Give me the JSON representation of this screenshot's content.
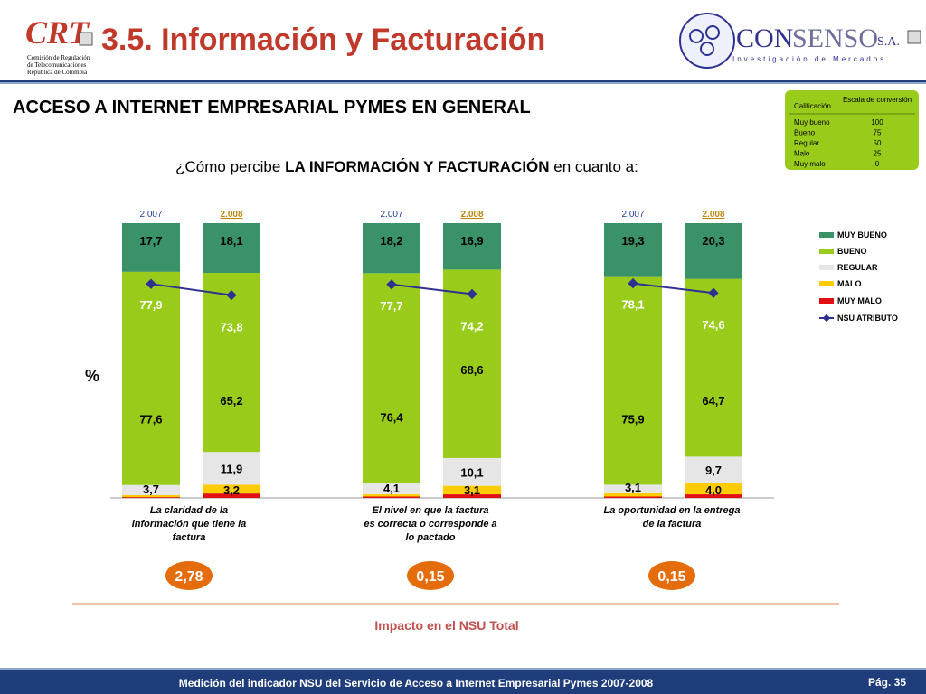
{
  "header": {
    "logo_text": "CRT",
    "logo_lines": [
      "Comisión de Regulación",
      "de Telecomunicaciones",
      "República de Colombia"
    ],
    "title": "3.5. Información y Facturación",
    "brand_name_a": "CON",
    "brand_name_b": "SENSO",
    "brand_suffix": "S.A.",
    "brand_tagline": "Investigación de Mercados"
  },
  "section_title": "ACCESO A INTERNET EMPRESARIAL PYMES EN GENERAL",
  "question": {
    "prefix": "¿Cómo percibe",
    "emphasis": "LA INFORMACIÓN Y FACTURACIÓN",
    "suffix": "en cuanto a:"
  },
  "scale_table": {
    "header_col1": "Calificación",
    "header_col2": "Escala de conversión",
    "rows": [
      {
        "label": "Muy bueno",
        "value": "100"
      },
      {
        "label": "Bueno",
        "value": "75"
      },
      {
        "label": "Regular",
        "value": "50"
      },
      {
        "label": "Malo",
        "value": "25"
      },
      {
        "label": "Muy malo",
        "value": "0"
      }
    ]
  },
  "colors": {
    "muy_bueno": "#3a9268",
    "bueno": "#99cc1a",
    "regular": "#e6e6e6",
    "malo": "#ffcc00",
    "muy_malo": "#e01010",
    "nsu": "#2e3192",
    "year_label": "#1f3d99",
    "impact_circle": "#e46c0a",
    "impact_label": "#c0504d",
    "footer_bg": "#1f3d7a"
  },
  "chart_data": {
    "type": "stacked-bar",
    "y_unit_label": "%",
    "segments_bottom_to_top": [
      "MUY MALO",
      "MALO",
      "REGULAR",
      "BUENO",
      "MUY BUENO"
    ],
    "legend": [
      "MUY BUENO",
      "BUENO",
      "REGULAR",
      "MALO",
      "MUY MALO",
      "NSU ATRIBUTO"
    ],
    "groups": [
      {
        "caption": "La claridad de la información que tiene la factura",
        "impact": "2,78",
        "bars": [
          {
            "year": "2.007",
            "muy_malo": 0.3,
            "malo": 0.7,
            "regular": 3.7,
            "bueno": 77.6,
            "muy_bueno": 17.7,
            "nsu": 77.9,
            "labels": {
              "muy_bueno": "17,7",
              "bueno": "77,6",
              "regular": "3,7",
              "nsu": "77,9"
            }
          },
          {
            "year": "2.008",
            "muy_malo": 1.6,
            "malo": 3.2,
            "regular": 11.9,
            "bueno": 65.2,
            "muy_bueno": 18.1,
            "nsu": 73.8,
            "labels": {
              "muy_bueno": "18,1",
              "bueno": "65,2",
              "regular": "11,9",
              "malo": "3,2",
              "nsu": "73,8"
            }
          }
        ]
      },
      {
        "caption": "El nivel en que la factura es correcta o corresponde a lo pactado",
        "impact": "0,15",
        "bars": [
          {
            "year": "2.007",
            "muy_malo": 0.5,
            "malo": 0.8,
            "regular": 4.1,
            "bueno": 76.4,
            "muy_bueno": 18.2,
            "nsu": 77.7,
            "labels": {
              "muy_bueno": "18,2",
              "bueno": "76,4",
              "regular": "4,1",
              "nsu": "77,7"
            }
          },
          {
            "year": "2.008",
            "muy_malo": 1.3,
            "malo": 3.1,
            "regular": 10.1,
            "bueno": 68.6,
            "muy_bueno": 16.9,
            "nsu": 74.2,
            "labels": {
              "muy_bueno": "16,9",
              "bueno": "68,6",
              "regular": "10,1",
              "malo": "3,1",
              "nsu": "74,2"
            }
          }
        ]
      },
      {
        "caption": "La oportunidad en la entrega de la factura",
        "impact": "0,15",
        "bars": [
          {
            "year": "2.007",
            "muy_malo": 0.5,
            "malo": 1.2,
            "regular": 3.1,
            "bueno": 75.9,
            "muy_bueno": 19.3,
            "nsu": 78.1,
            "labels": {
              "muy_bueno": "19,3",
              "bueno": "75,9",
              "regular": "3,1",
              "nsu": "78,1"
            }
          },
          {
            "year": "2.008",
            "muy_malo": 1.3,
            "malo": 4.0,
            "regular": 9.7,
            "bueno": 64.7,
            "muy_bueno": 20.3,
            "nsu": 74.6,
            "labels": {
              "muy_bueno": "20,3",
              "bueno": "64,7",
              "regular": "9,7",
              "malo": "4,0",
              "nsu": "74,6"
            }
          }
        ]
      }
    ]
  },
  "impact_title": "Impacto en el NSU Total",
  "footer": {
    "text": "Medición del  indicador NSU del Servicio de Acceso a Internet Empresarial Pymes 2007-2008",
    "page": "Pág. 35"
  }
}
